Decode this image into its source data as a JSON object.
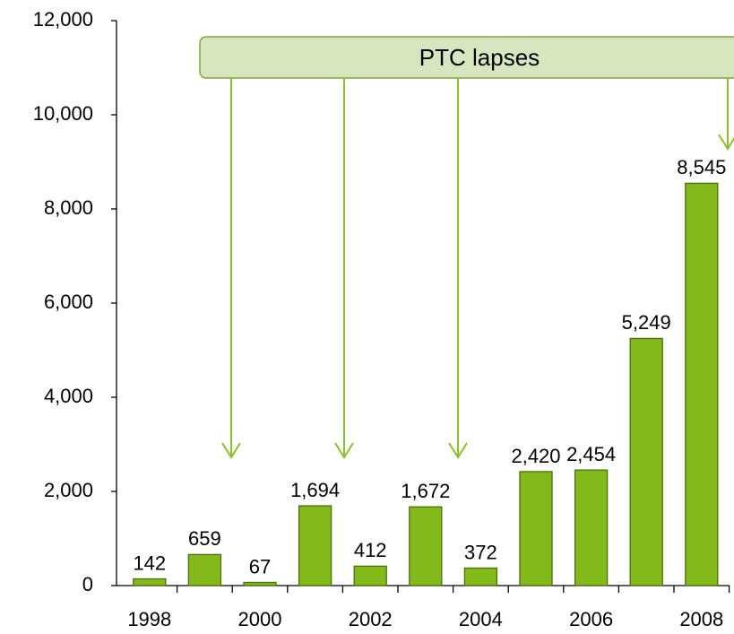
{
  "chart_data": {
    "type": "bar",
    "annotation": "PTC lapses",
    "categories": [
      "1998",
      null,
      "2000",
      null,
      "2002",
      null,
      "2004",
      null,
      "2006",
      null,
      "2008"
    ],
    "values": [
      142,
      659,
      67,
      1694,
      412,
      1672,
      372,
      2420,
      2454,
      5249,
      8545
    ],
    "value_labels": [
      "142",
      "659",
      "67",
      "1,694",
      "412",
      "1,672",
      "372",
      "2,420",
      "2,454",
      "5,249",
      "8,545"
    ],
    "color": "#84b91c",
    "ylim": [
      0,
      12000
    ],
    "yticks": [
      0,
      {
        "value": 2000,
        "label": "2,000"
      },
      {
        "value": 4000,
        "label": "4,000"
      },
      {
        "value": 6000,
        "label": "6,000"
      },
      {
        "value": 8000,
        "label": "8,000"
      },
      {
        "value": 10000,
        "label": "10,000"
      },
      {
        "value": 12000,
        "label": "12,000"
      }
    ],
    "grid": false
  }
}
